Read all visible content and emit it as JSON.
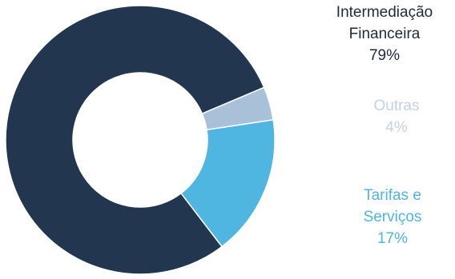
{
  "chart_data": {
    "type": "pie",
    "variant": "donut",
    "slices": [
      {
        "label_lines": [
          "Intermediação",
          "Financeira"
        ],
        "value": 79,
        "value_label": "79%",
        "color": "#22364f",
        "label_color": "#1f2a3a"
      },
      {
        "label_lines": [
          "Outras"
        ],
        "value": 4,
        "value_label": "4%",
        "color": "#a9c1d8",
        "label_color": "#c3d3e2"
      },
      {
        "label_lines": [
          "Tarifas e",
          "Serviços"
        ],
        "value": 17,
        "value_label": "17%",
        "color": "#4fb5e1",
        "label_color": "#4fb5e1"
      }
    ],
    "legend": "right"
  }
}
